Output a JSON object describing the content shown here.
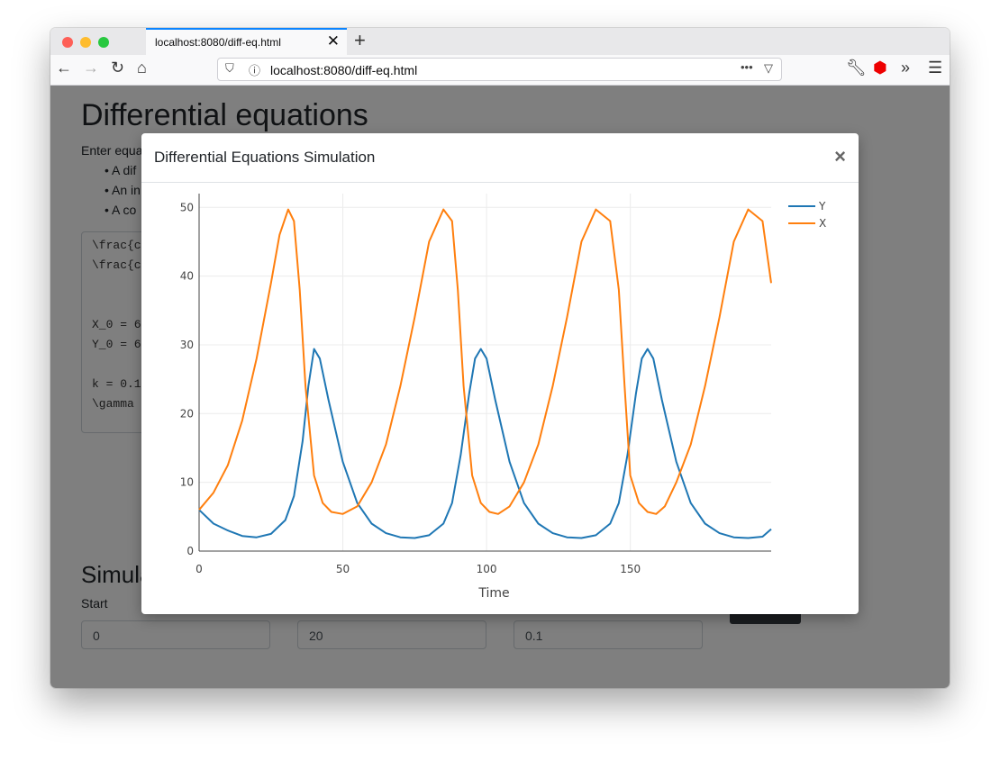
{
  "browser": {
    "tab_title": "localhost:8080/diff-eq.html",
    "url": "localhost:8080/diff-eq.html"
  },
  "page": {
    "title": "Differential equations",
    "intro": "Enter equa",
    "bullets": [
      "A dif",
      "An in",
      "A co"
    ],
    "code_lines": [
      "\\frac{c",
      "\\frac{c",
      "",
      "",
      "X_0 = 6",
      "Y_0 = 6",
      "",
      "k = 0.1",
      "\\gamma"
    ],
    "sim_heading": "Simula",
    "start_label": "Start",
    "inputs": [
      "0",
      "20",
      "0.1"
    ]
  },
  "modal": {
    "title": "Differential Equations Simulation",
    "close": "×"
  },
  "chart_data": {
    "type": "line",
    "xlabel": "Time",
    "ylabel": "",
    "xlim": [
      0,
      199
    ],
    "ylim": [
      0,
      52
    ],
    "x_ticks": [
      0,
      50,
      100,
      150
    ],
    "y_ticks": [
      0,
      10,
      20,
      30,
      40,
      50
    ],
    "legend_position": "top-right",
    "series": [
      {
        "name": "Y",
        "color": "#1f77b4",
        "x": [
          0,
          5,
          10,
          15,
          20,
          25,
          30,
          33,
          36,
          38,
          40,
          42,
          45,
          50,
          55,
          60,
          65,
          70,
          75,
          80,
          85,
          88,
          91,
          94,
          96,
          98,
          100,
          103,
          108,
          113,
          118,
          123,
          128,
          133,
          138,
          143,
          146,
          149,
          152,
          154,
          156,
          158,
          161,
          166,
          171,
          176,
          181,
          186,
          191,
          196,
          199
        ],
        "values": [
          6,
          4,
          3,
          2.2,
          2,
          2.5,
          4.5,
          8,
          16,
          24,
          29.4,
          28,
          22,
          13,
          7,
          4,
          2.6,
          2,
          1.9,
          2.3,
          4,
          7,
          14,
          23,
          28,
          29.4,
          28,
          22,
          13,
          7,
          4,
          2.6,
          2,
          1.9,
          2.3,
          4,
          7,
          14,
          23,
          28,
          29.4,
          28,
          22,
          13,
          7,
          4,
          2.6,
          2,
          1.9,
          2.1,
          3.2
        ]
      },
      {
        "name": "X",
        "color": "#ff7f0e",
        "x": [
          0,
          5,
          10,
          15,
          20,
          25,
          28,
          31,
          33,
          35,
          37,
          40,
          43,
          46,
          50,
          55,
          60,
          65,
          70,
          75,
          80,
          85,
          88,
          90,
          92,
          95,
          98,
          101,
          104,
          108,
          113,
          118,
          123,
          128,
          133,
          138,
          143,
          146,
          148,
          150,
          153,
          156,
          159,
          162,
          166,
          171,
          176,
          181,
          186,
          191,
          196,
          199
        ],
        "values": [
          6,
          8.5,
          12.5,
          19,
          28,
          39,
          46,
          49.7,
          48,
          38,
          24,
          11,
          7,
          5.7,
          5.4,
          6.5,
          10,
          15.5,
          24,
          34,
          45,
          49.7,
          48,
          38,
          24,
          11,
          7,
          5.7,
          5.4,
          6.5,
          10,
          15.5,
          24,
          34,
          45,
          49.7,
          48,
          38,
          24,
          11,
          7,
          5.7,
          5.4,
          6.5,
          10,
          15.5,
          24,
          34,
          45,
          49.7,
          48,
          39
        ]
      }
    ]
  }
}
